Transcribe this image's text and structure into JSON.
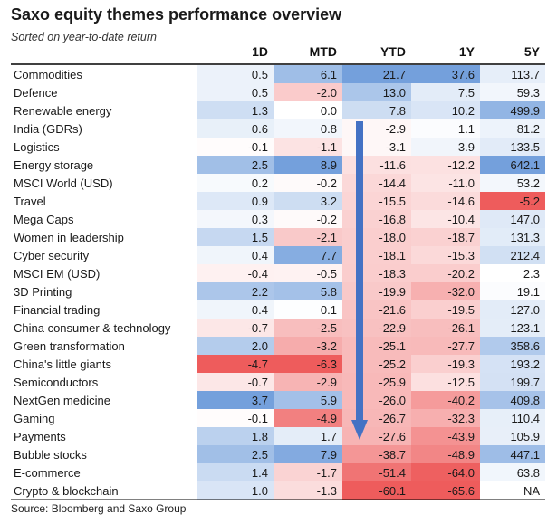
{
  "title": "Saxo equity themes performance overview",
  "subtitle": "Sorted on year-to-date return",
  "source": "Source: Bloomberg and Saxo Group",
  "colors": {
    "positive": "#5b8fd6",
    "negative": "#ec4a4a",
    "arrow": "#4472c4",
    "header_rule": "#000000"
  },
  "chart_data": {
    "type": "heatmap",
    "title": "Saxo equity themes performance overview",
    "subtitle": "Sorted on year-to-date return",
    "columns": [
      "1D",
      "MTD",
      "YTD",
      "1Y",
      "5Y"
    ],
    "rows": [
      {
        "label": "Commodities",
        "values": [
          0.5,
          6.1,
          21.7,
          37.6,
          113.7
        ]
      },
      {
        "label": "Defence",
        "values": [
          0.5,
          -2.0,
          13.0,
          7.5,
          59.3
        ]
      },
      {
        "label": "Renewable energy",
        "values": [
          1.3,
          0.0,
          7.8,
          10.2,
          499.9
        ]
      },
      {
        "label": "India (GDRs)",
        "values": [
          0.6,
          0.8,
          -2.9,
          1.1,
          81.2
        ]
      },
      {
        "label": "Logistics",
        "values": [
          -0.1,
          -1.1,
          -3.1,
          3.9,
          133.5
        ]
      },
      {
        "label": "Energy storage",
        "values": [
          2.5,
          8.9,
          -11.6,
          -12.2,
          642.1
        ]
      },
      {
        "label": "MSCI World (USD)",
        "values": [
          0.2,
          -0.2,
          -14.4,
          -11.0,
          53.2
        ]
      },
      {
        "label": "Travel",
        "values": [
          0.9,
          3.2,
          -15.5,
          -14.6,
          -5.2
        ]
      },
      {
        "label": "Mega Caps",
        "values": [
          0.3,
          -0.2,
          -16.8,
          -10.4,
          147.0
        ]
      },
      {
        "label": "Women in leadership",
        "values": [
          1.5,
          -2.1,
          -18.0,
          -18.7,
          131.3
        ]
      },
      {
        "label": "Cyber security",
        "values": [
          0.4,
          7.7,
          -18.1,
          -15.3,
          212.4
        ]
      },
      {
        "label": "MSCI EM (USD)",
        "values": [
          -0.4,
          -0.5,
          -18.3,
          -20.2,
          2.3
        ]
      },
      {
        "label": "3D Printing",
        "values": [
          2.2,
          5.8,
          -19.9,
          -32.0,
          19.1
        ]
      },
      {
        "label": "Financial trading",
        "values": [
          0.4,
          0.1,
          -21.6,
          -19.5,
          127.0
        ]
      },
      {
        "label": "China consumer & technology",
        "values": [
          -0.7,
          -2.5,
          -22.9,
          -26.1,
          123.1
        ]
      },
      {
        "label": "Green transformation",
        "values": [
          2.0,
          -3.2,
          -25.1,
          -27.7,
          358.6
        ]
      },
      {
        "label": "China's little giants",
        "values": [
          -4.7,
          -6.3,
          -25.2,
          -19.3,
          193.2
        ]
      },
      {
        "label": "Semiconductors",
        "values": [
          -0.7,
          -2.9,
          -25.9,
          -12.5,
          199.7
        ]
      },
      {
        "label": "NextGen medicine",
        "values": [
          3.7,
          5.9,
          -26.0,
          -40.2,
          409.8
        ]
      },
      {
        "label": "Gaming",
        "values": [
          -0.1,
          -4.9,
          -26.7,
          -32.3,
          110.4
        ]
      },
      {
        "label": "Payments",
        "values": [
          1.8,
          1.7,
          -27.6,
          -43.9,
          105.9
        ]
      },
      {
        "label": "Bubble stocks",
        "values": [
          2.5,
          7.9,
          -38.7,
          -48.9,
          447.1
        ]
      },
      {
        "label": "E-commerce",
        "values": [
          1.4,
          -1.7,
          -51.4,
          -64.0,
          63.8
        ]
      },
      {
        "label": "Crypto & blockchain",
        "values": [
          1.0,
          -1.3,
          -60.1,
          -65.6,
          "NA"
        ]
      }
    ],
    "annotation": "downward arrow over YTD column (sort direction)"
  }
}
